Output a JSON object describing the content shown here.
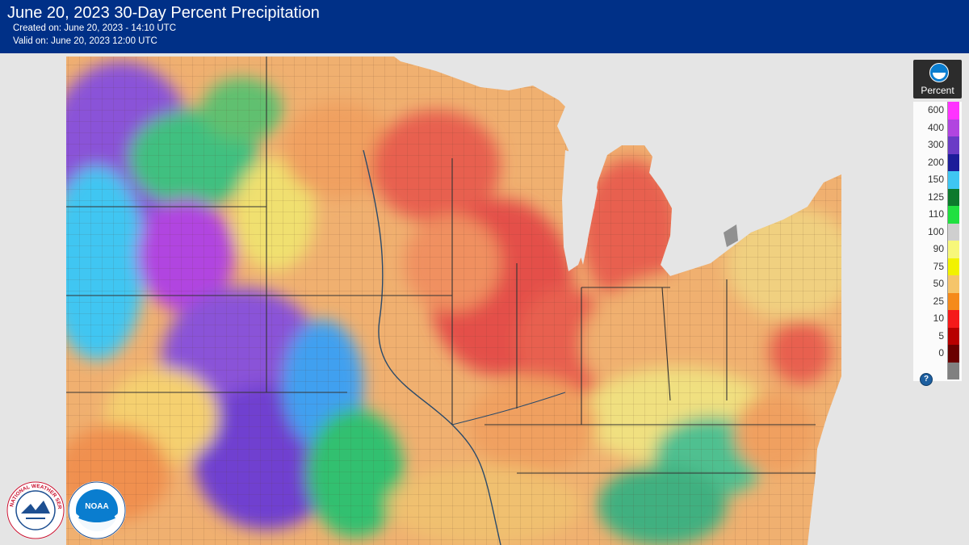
{
  "header": {
    "title": "June 20, 2023 30-Day Percent Precipitation",
    "created": "Created on: June 20, 2023 - 14:10 UTC",
    "valid": "Valid on: June 20, 2023 12:00 UTC"
  },
  "legend": {
    "unit": "Percent",
    "help_icon": "question-icon",
    "classes": [
      {
        "label": "600",
        "color": "#ff33ff"
      },
      {
        "label": "400",
        "color": "#b145e0"
      },
      {
        "label": "300",
        "color": "#6a3bc6"
      },
      {
        "label": "200",
        "color": "#1c1c9a"
      },
      {
        "label": "150",
        "color": "#3fc6f2"
      },
      {
        "label": "125",
        "color": "#0c7a2c"
      },
      {
        "label": "110",
        "color": "#20e040"
      },
      {
        "label": "100",
        "color": "#cfcfcf"
      },
      {
        "label": "90",
        "color": "#f7f77a"
      },
      {
        "label": "75",
        "color": "#f2f200"
      },
      {
        "label": "50",
        "color": "#f5c56a"
      },
      {
        "label": "25",
        "color": "#f58a1a"
      },
      {
        "label": "10",
        "color": "#f51a1a"
      },
      {
        "label": "5",
        "color": "#b80000"
      },
      {
        "label": "0",
        "color": "#6a0000"
      },
      {
        "label": "",
        "color": "#808080"
      }
    ]
  },
  "logos": {
    "nws_icon": "nws-logo-icon",
    "noaa_icon": "noaa-logo-icon",
    "nws_text": "NATIONAL WEATHER SERVICE",
    "noaa_text": "NOAA"
  },
  "map": {
    "land_color": "#f0b070",
    "water_color": "#e5e5e5"
  }
}
